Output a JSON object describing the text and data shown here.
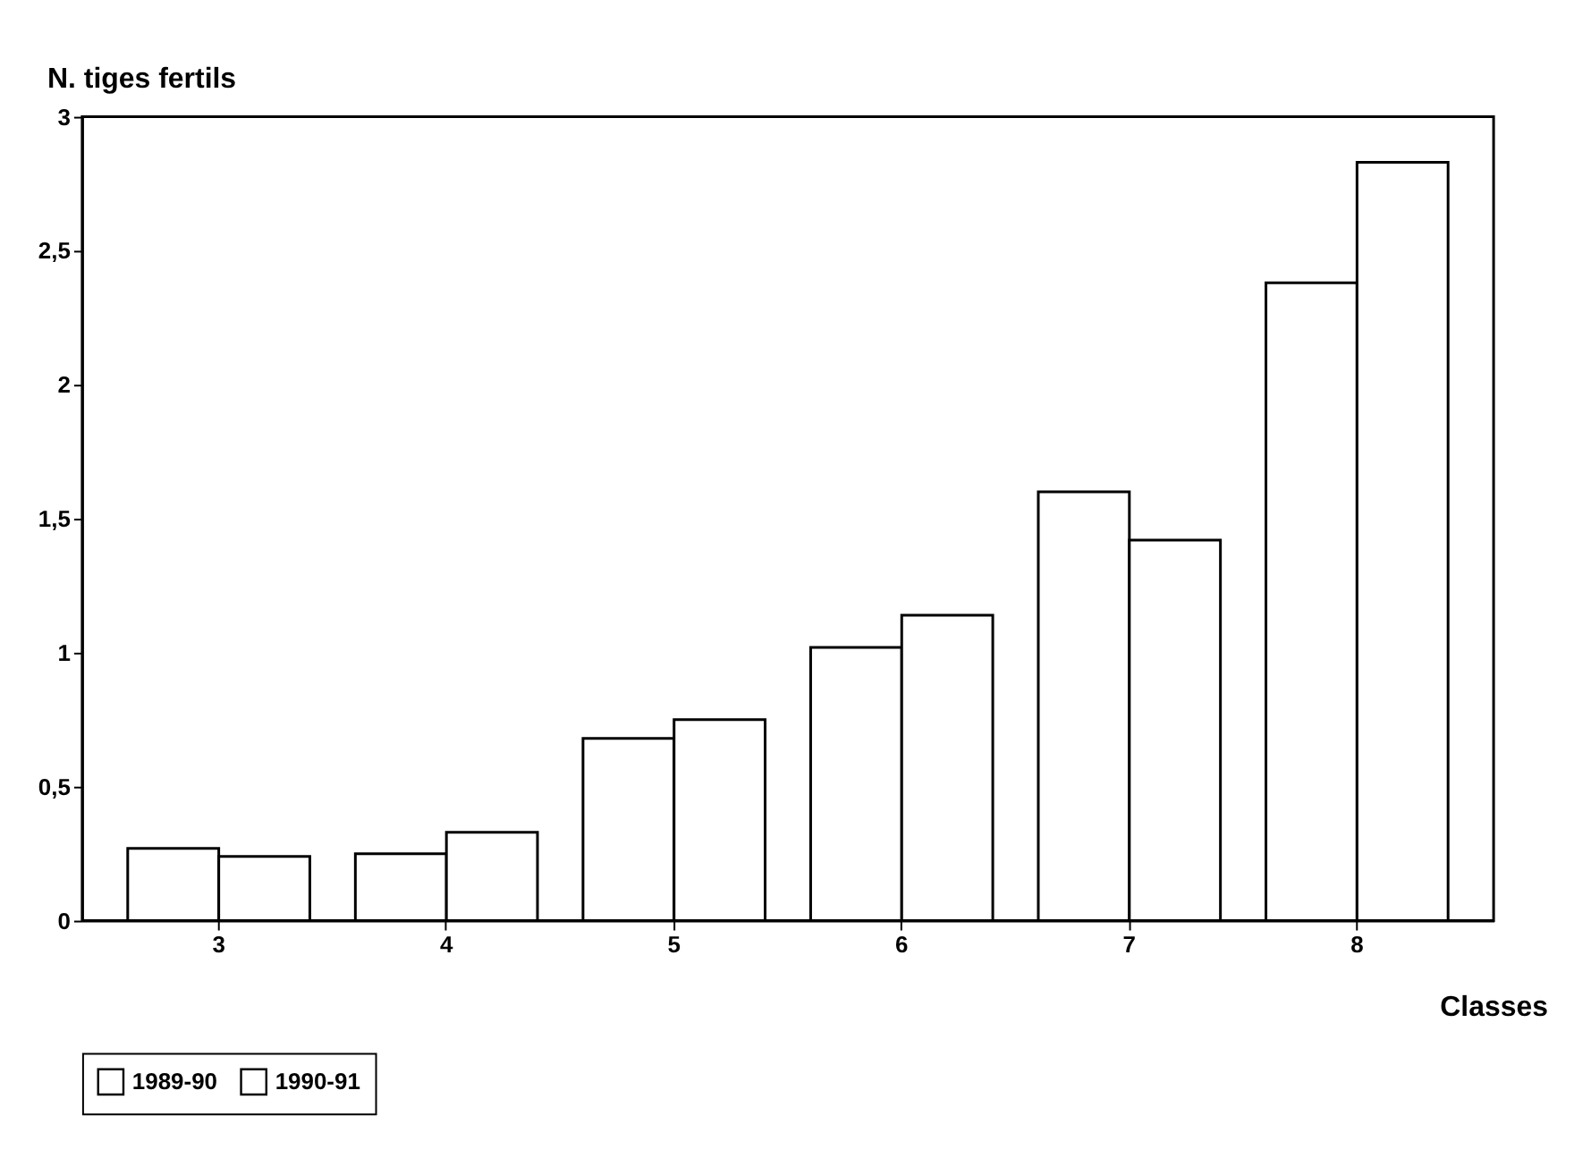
{
  "chart_data": {
    "type": "bar",
    "xlabel": "Classes",
    "ylabel": "N. tiges fertils",
    "categories": [
      "3",
      "4",
      "5",
      "6",
      "7",
      "8"
    ],
    "series": [
      {
        "name": "1989-90",
        "color": "#ffffff",
        "values": [
          0.27,
          0.25,
          0.68,
          1.02,
          1.6,
          2.38
        ]
      },
      {
        "name": "1990-91",
        "color": "#ffffff",
        "values": [
          0.24,
          0.33,
          0.75,
          1.14,
          1.42,
          2.83
        ]
      }
    ],
    "ylim": [
      0,
      3
    ],
    "yticks": [
      0,
      {
        "value": 0.5,
        "label": "0,5"
      },
      1,
      {
        "value": 1.5,
        "label": "1,5"
      },
      2,
      {
        "value": 2.5,
        "label": "2,5"
      },
      3
    ],
    "grid": false,
    "legend": "bottom"
  }
}
